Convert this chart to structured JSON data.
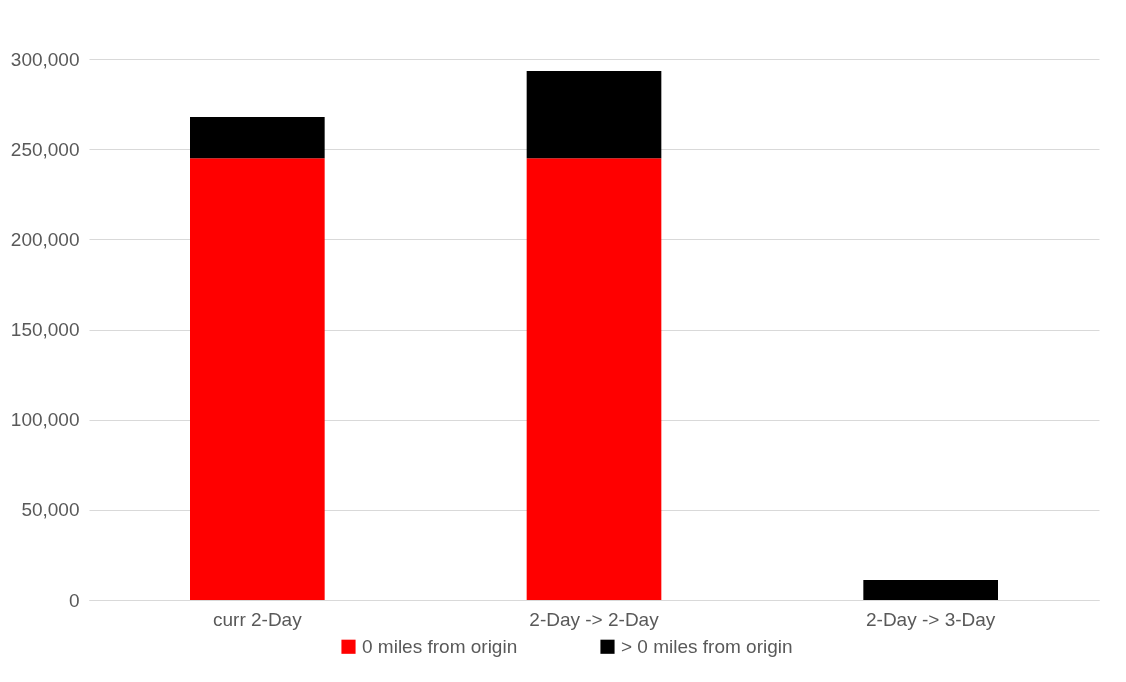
{
  "chart_data": {
    "type": "bar",
    "stacked": true,
    "categories": [
      "curr 2-Day",
      "2-Day -> 2-Day",
      "2-Day -> 3-Day"
    ],
    "series": [
      {
        "name": "0 miles from origin",
        "color": "#ff0000",
        "values": [
          245000,
          245000,
          0
        ]
      },
      {
        "name": "> 0 miles from origin",
        "color": "#000000",
        "values": [
          22800,
          48300,
          11100
        ]
      }
    ],
    "ylim": [
      0,
      300000
    ],
    "yticks": [
      0,
      {
        "value": 50000,
        "label": "50,000"
      },
      {
        "value": 100000,
        "label": "100,000"
      },
      {
        "value": 150000,
        "label": "150,000"
      },
      {
        "value": 200000,
        "label": "200,000"
      },
      {
        "value": 250000,
        "label": "250,000"
      },
      {
        "value": 300000,
        "label": "300,000"
      }
    ],
    "grid": "y",
    "legend": "bottom"
  }
}
